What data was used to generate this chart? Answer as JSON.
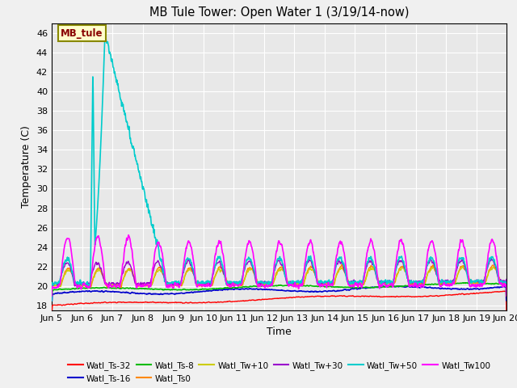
{
  "title": "MB Tule Tower: Open Water 1 (3/19/14-now)",
  "xlabel": "Time",
  "ylabel": "Temperature (C)",
  "ylim": [
    17.5,
    47
  ],
  "xlim": [
    0,
    15
  ],
  "x_tick_labels": [
    "Jun 5",
    "Jun 6",
    "Jun 7",
    "Jun 8",
    "Jun 9",
    "Jun 10",
    "Jun 11",
    "Jun 12",
    "Jun 13",
    "Jun 14",
    "Jun 15",
    "Jun 16",
    "Jun 17",
    "Jun 18",
    "Jun 19",
    "Jun 20"
  ],
  "x_tick_positions": [
    0,
    1,
    2,
    3,
    4,
    5,
    6,
    7,
    8,
    9,
    10,
    11,
    12,
    13,
    14,
    15
  ],
  "y_ticks": [
    18,
    20,
    22,
    24,
    26,
    28,
    30,
    32,
    34,
    36,
    38,
    40,
    42,
    44,
    46
  ],
  "annotation_text": "MB_tule",
  "bg_color": "#e8e8e8",
  "series": {
    "Watl_Ts-32": {
      "color": "#ff0000",
      "lw": 1.0
    },
    "Watl_Ts-16": {
      "color": "#0000cc",
      "lw": 1.2
    },
    "Watl_Ts-8": {
      "color": "#00bb00",
      "lw": 1.2
    },
    "Watl_Ts0": {
      "color": "#ff8800",
      "lw": 1.0
    },
    "Watl_Tw+10": {
      "color": "#cccc00",
      "lw": 1.0
    },
    "Watl_Tw+30": {
      "color": "#9900cc",
      "lw": 1.0
    },
    "Watl_Tw+50": {
      "color": "#00cccc",
      "lw": 1.2
    },
    "Watl_Tw100": {
      "color": "#ff00ff",
      "lw": 1.2
    }
  }
}
